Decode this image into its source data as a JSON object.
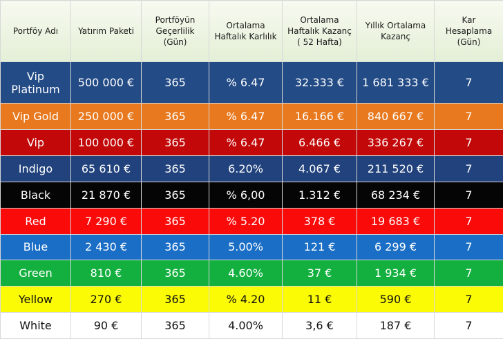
{
  "table": {
    "header": [
      "Portföy Adı",
      "Yatırım Paketi",
      "Portföyün Geçerlilik (Gün)",
      "Ortalama Haftalık Karlılık",
      "Ortalama Haftalık Kazanç ( 52 Hafta)",
      "Yıllık Ortalama Kazanç",
      "Kar Hesaplama (Gün)"
    ],
    "rows": [
      [
        "Vip Platinum",
        "500 000 €",
        "365",
        "% 6.47",
        "32.333 €",
        "1 681 333 €",
        "7"
      ],
      [
        "Vip Gold",
        "250 000 €",
        "365",
        "% 6.47",
        "16.166 €",
        "840 667 €",
        "7"
      ],
      [
        "Vip",
        "100 000 €",
        "365",
        "% 6.47",
        "6.466 €",
        "336 267 €",
        "7"
      ],
      [
        "Indigo",
        "65 610 €",
        "365",
        "6.20%",
        "4.067 €",
        "211 520 €",
        "7"
      ],
      [
        "Black",
        "21 870 €",
        "365",
        "% 6,00",
        "1.312 €",
        "68 234 €",
        "7"
      ],
      [
        "Red",
        "7 290 €",
        "365",
        "% 5.20",
        "378 €",
        "19 683 €",
        "7"
      ],
      [
        "Blue",
        "2 430 €",
        "365",
        "5.00%",
        "121 €",
        "6 299 €",
        "7"
      ],
      [
        "Green",
        "810 €",
        "365",
        "4.60%",
        "37 €",
        "1 934 €",
        "7"
      ],
      [
        "Yellow",
        "270 €",
        "365",
        "% 4.20",
        "11 €",
        "590 €",
        "7"
      ],
      [
        "White",
        "90 €",
        "365",
        "4.00%",
        "3,6 €",
        "187 €",
        "7"
      ]
    ]
  }
}
